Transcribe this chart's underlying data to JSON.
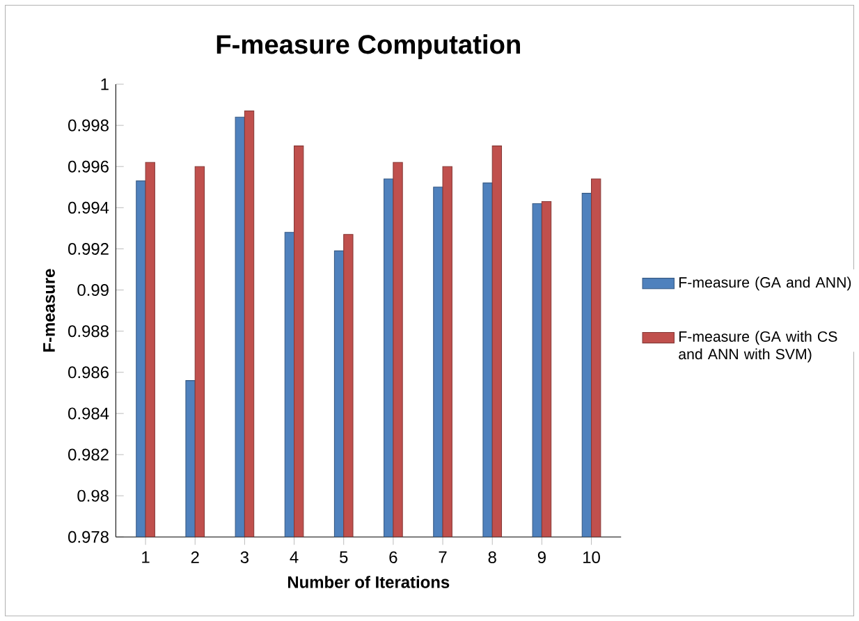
{
  "chart_data": {
    "type": "bar",
    "title": "F-measure Computation",
    "xlabel": "Number of Iterations",
    "ylabel": "F-measure",
    "categories": [
      "1",
      "2",
      "3",
      "4",
      "5",
      "6",
      "7",
      "8",
      "9",
      "10"
    ],
    "series": [
      {
        "name": "F-measure (GA and ANN)",
        "color": "#4f81bd",
        "values": [
          0.9953,
          0.9856,
          0.9984,
          0.9928,
          0.9919,
          0.9954,
          0.995,
          0.9952,
          0.9942,
          0.9947
        ]
      },
      {
        "name": "F-measure (GA with CS and ANN with SVM)",
        "color": "#c0504d",
        "values": [
          0.9962,
          0.996,
          0.9987,
          0.997,
          0.9927,
          0.9962,
          0.996,
          0.997,
          0.9943,
          0.9954
        ]
      }
    ],
    "ylim": [
      0.978,
      1
    ],
    "yticks": [
      0.978,
      0.98,
      0.982,
      0.984,
      0.986,
      0.988,
      0.99,
      0.992,
      0.994,
      0.996,
      0.998,
      1
    ],
    "legend": "right",
    "grid": false
  }
}
